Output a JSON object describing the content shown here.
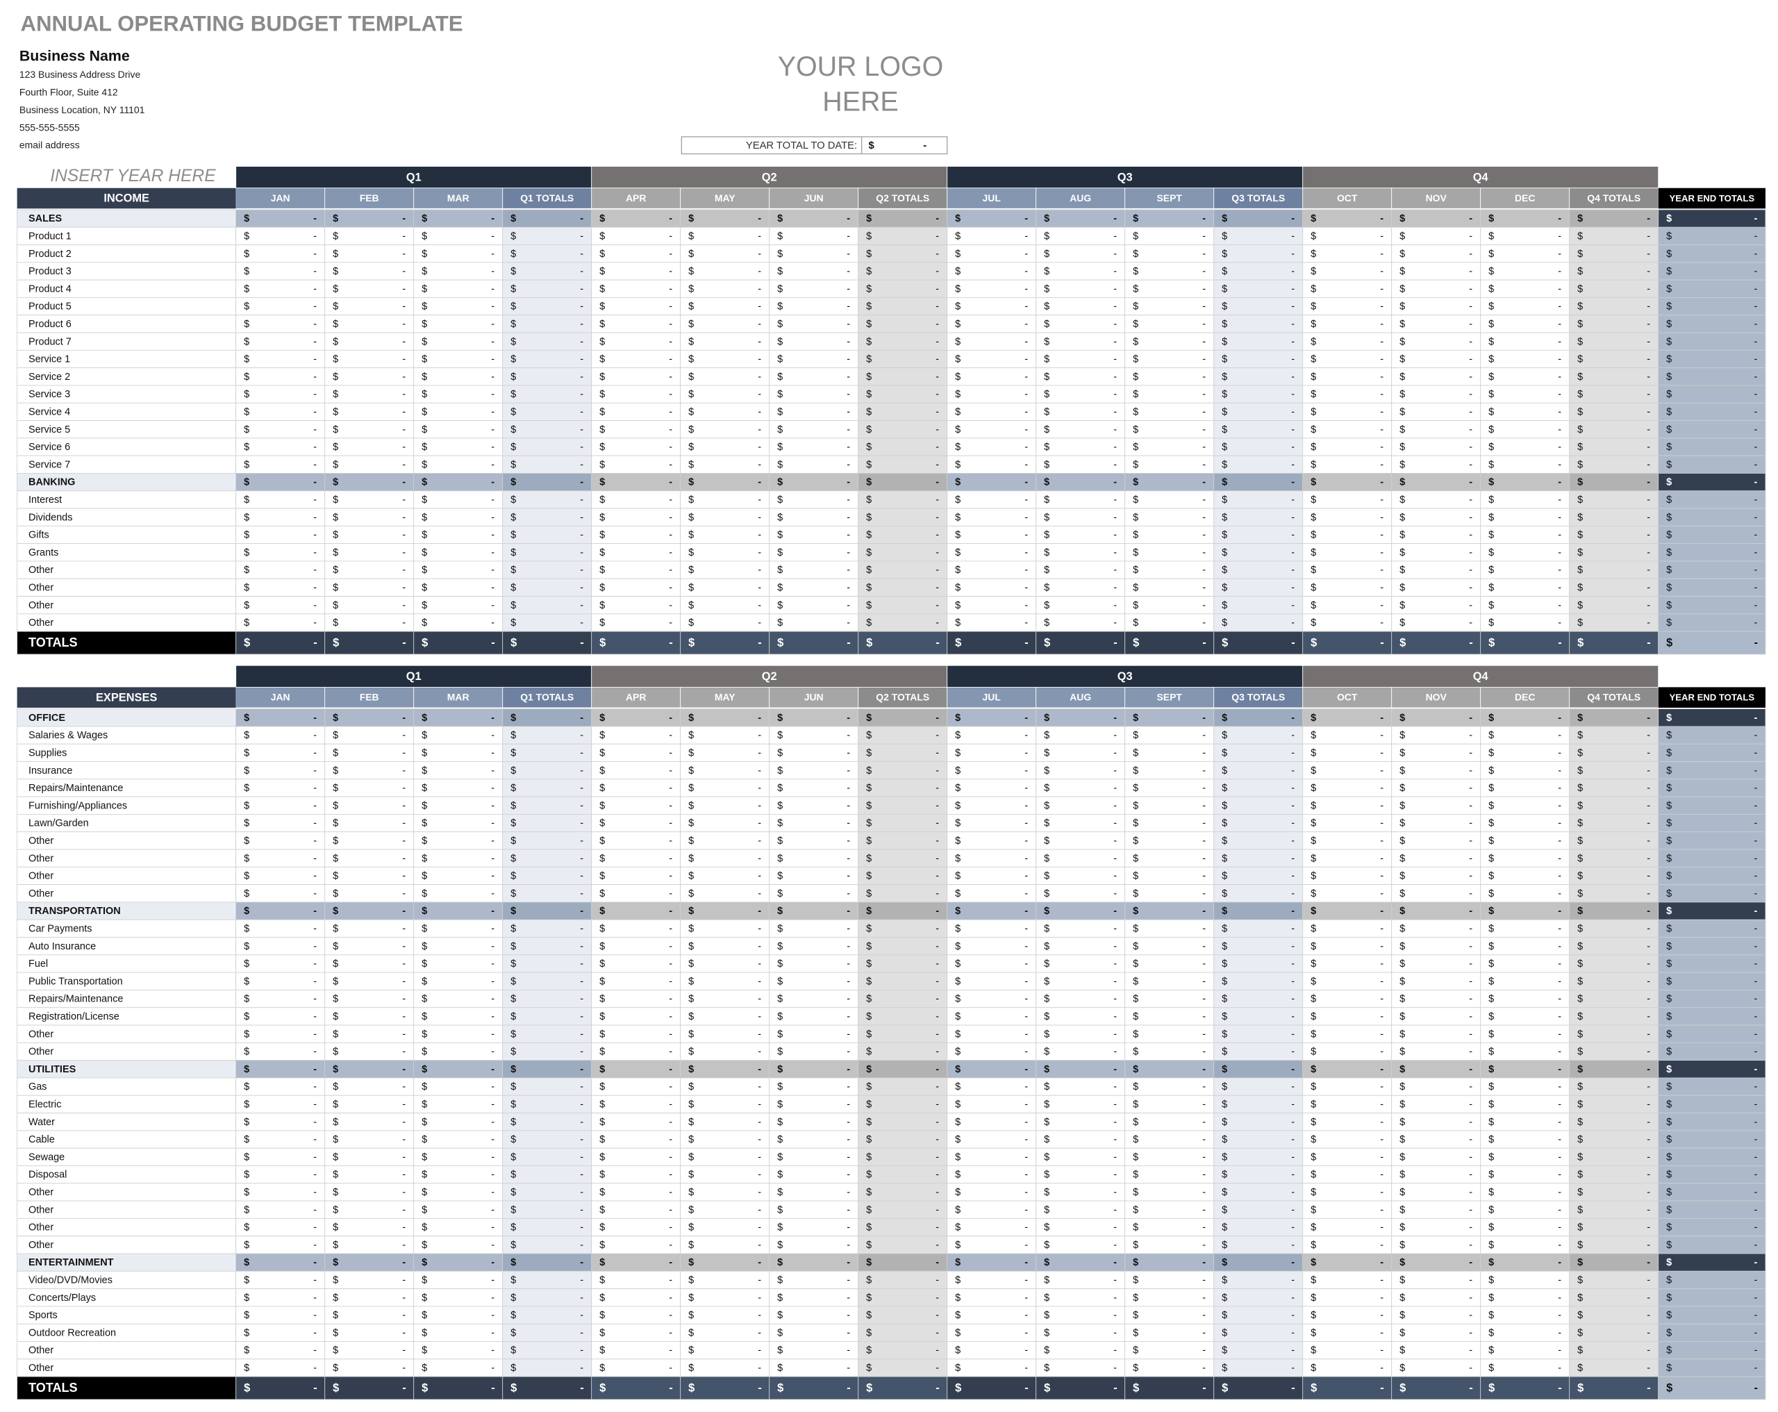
{
  "header": {
    "title": "ANNUAL OPERATING BUDGET TEMPLATE",
    "business_name": "Business Name",
    "address_lines": [
      "123 Business Address Drive",
      "Fourth Floor, Suite 412",
      "Business Location, NY  11101",
      "555-555-5555",
      "email address"
    ],
    "logo": [
      "YOUR LOGO",
      "HERE"
    ],
    "year_total_label": "YEAR TOTAL TO DATE:",
    "year_prompt": "INSERT YEAR HERE"
  },
  "cell": {
    "currency": "$",
    "empty": "-"
  },
  "quarters": [
    {
      "name": "Q1",
      "months": [
        "JAN",
        "FEB",
        "MAR"
      ],
      "total": "Q1 TOTALS"
    },
    {
      "name": "Q2",
      "months": [
        "APR",
        "MAY",
        "JUN"
      ],
      "total": "Q2 TOTALS"
    },
    {
      "name": "Q3",
      "months": [
        "JUL",
        "AUG",
        "SEPT"
      ],
      "total": "Q3 TOTALS"
    },
    {
      "name": "Q4",
      "months": [
        "OCT",
        "NOV",
        "DEC"
      ],
      "total": "Q4 TOTALS"
    }
  ],
  "year_end": "YEAR END TOTALS",
  "income": {
    "title": "INCOME",
    "groups": [
      {
        "name": "SALES",
        "rows": [
          "Product 1",
          "Product 2",
          "Product 3",
          "Product 4",
          "Product 5",
          "Product 6",
          "Product 7",
          "Service 1",
          "Service 2",
          "Service 3",
          "Service 4",
          "Service 5",
          "Service 6",
          "Service 7"
        ]
      },
      {
        "name": "BANKING",
        "rows": [
          "Interest",
          "Dividends",
          "Gifts",
          "Grants",
          "Other",
          "Other",
          "Other",
          "Other"
        ]
      }
    ],
    "totals": "TOTALS"
  },
  "expenses": {
    "title": "EXPENSES",
    "groups": [
      {
        "name": "OFFICE",
        "rows": [
          "Salaries & Wages",
          "Supplies",
          "Insurance",
          "Repairs/Maintenance",
          "Furnishing/Appliances",
          "Lawn/Garden",
          "Other",
          "Other",
          "Other",
          "Other"
        ]
      },
      {
        "name": "TRANSPORTATION",
        "rows": [
          "Car Payments",
          "Auto Insurance",
          "Fuel",
          "Public Transportation",
          "Repairs/Maintenance",
          "Registration/License",
          "Other",
          "Other"
        ]
      },
      {
        "name": "UTILITIES",
        "rows": [
          "Gas",
          "Electric",
          "Water",
          "Cable",
          "Sewage",
          "Disposal",
          "Other",
          "Other",
          "Other",
          "Other"
        ]
      },
      {
        "name": "ENTERTAINMENT",
        "rows": [
          "Video/DVD/Movies",
          "Concerts/Plays",
          "Sports",
          "Outdoor Recreation",
          "Other",
          "Other"
        ]
      }
    ],
    "totals": "TOTALS"
  }
}
